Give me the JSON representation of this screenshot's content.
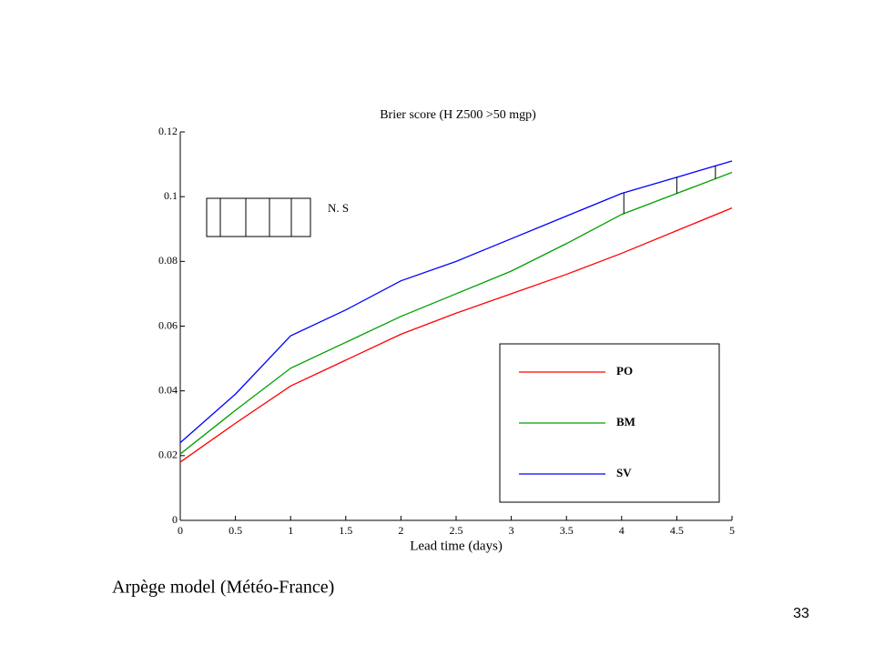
{
  "chart_data": {
    "type": "line",
    "title": "Brier score (H Z500 >50 mgp)",
    "xlabel": "Lead time (days)",
    "x": [
      0,
      0.5,
      1,
      1.5,
      2,
      2.5,
      3,
      3.5,
      4,
      4.5,
      5
    ],
    "series": [
      {
        "name": "PO",
        "color": "#ff0000",
        "values": [
          0.018,
          0.03,
          0.0415,
          0.0495,
          0.0575,
          0.064,
          0.07,
          0.076,
          0.0825,
          0.0895,
          0.0965
        ]
      },
      {
        "name": "BM",
        "color": "#00a000",
        "values": [
          0.0205,
          0.034,
          0.047,
          0.055,
          0.063,
          0.07,
          0.077,
          0.0855,
          0.0945,
          0.101,
          0.1075
        ]
      },
      {
        "name": "SV",
        "color": "#0000ff",
        "values": [
          0.024,
          0.039,
          0.057,
          0.065,
          0.074,
          0.08,
          0.087,
          0.094,
          0.101,
          0.106,
          0.111
        ]
      }
    ],
    "significance_x": [
      4.02,
      4.5,
      4.85
    ],
    "significance_label": "N. S",
    "xlim": [
      0,
      5
    ],
    "xticks": [
      0,
      0.5,
      1,
      1.5,
      2,
      2.5,
      3,
      3.5,
      4,
      4.5,
      5
    ],
    "ylim": [
      0,
      0.12
    ],
    "yticks": [
      0,
      0.02,
      0.04,
      0.06,
      0.08,
      0.1,
      0.12
    ],
    "grid": false,
    "legend": "lower right"
  },
  "caption": "Arpège model (Météo-France)",
  "page_number": "33"
}
